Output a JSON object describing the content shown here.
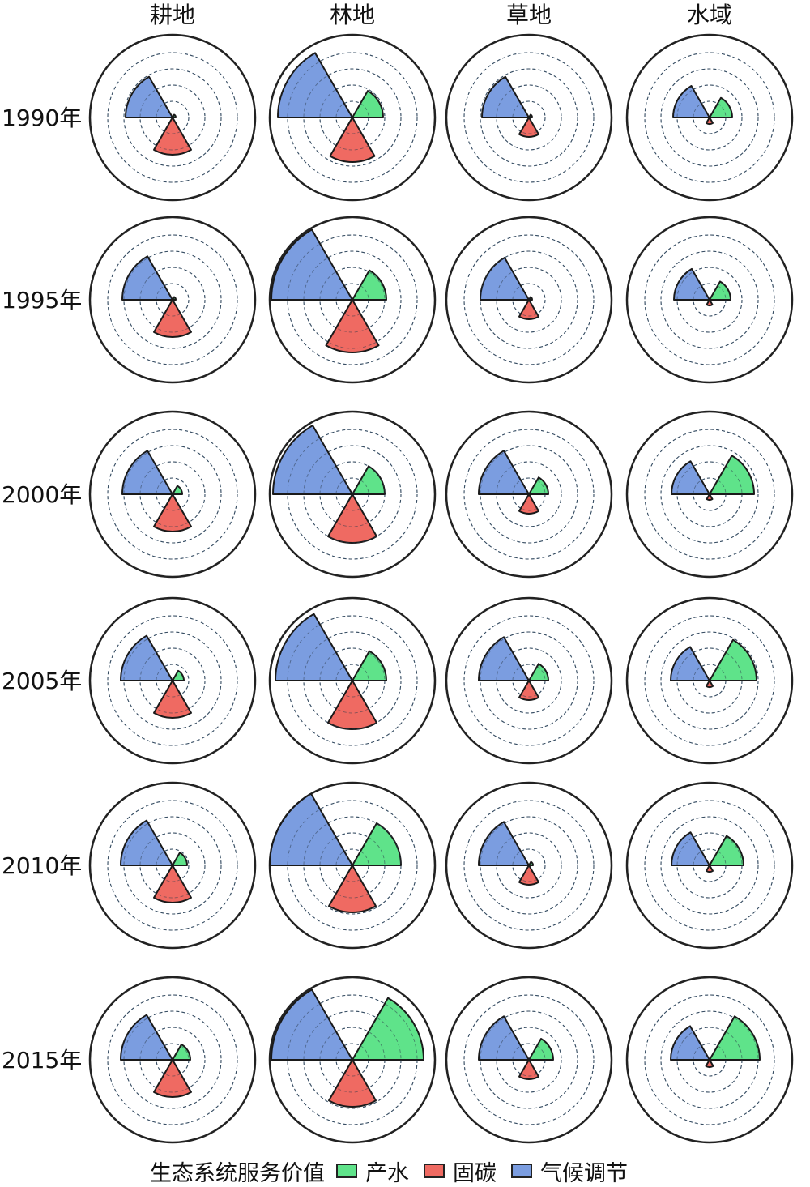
{
  "chart_data": {
    "type": "polar-area",
    "columns": [
      "耕地",
      "林地",
      "草地",
      "水域"
    ],
    "rows": [
      "1990年",
      "1995年",
      "2000年",
      "2005年",
      "2010年",
      "2015年"
    ],
    "legend": {
      "title": "生态系统服务价值",
      "items": [
        {
          "name": "产水",
          "color": "#5fe38a"
        },
        {
          "name": "固碳",
          "color": "#ef6a62"
        },
        {
          "name": "气候调节",
          "color": "#7b9de0"
        }
      ]
    },
    "series": [
      {
        "name": "气候调节",
        "color": "#7b9de0",
        "values": [
          [
            0.58,
            0.92,
            0.58,
            0.45
          ],
          [
            0.62,
            1.0,
            0.6,
            0.44
          ],
          [
            0.62,
            0.98,
            0.62,
            0.47
          ],
          [
            0.64,
            0.95,
            0.62,
            0.48
          ],
          [
            0.64,
            1.02,
            0.62,
            0.47
          ],
          [
            0.64,
            1.0,
            0.62,
            0.48
          ]
        ]
      },
      {
        "name": "产水",
        "color": "#5fe38a",
        "values": [
          [
            0.04,
            0.38,
            0.04,
            0.28
          ],
          [
            0.04,
            0.42,
            0.04,
            0.26
          ],
          [
            0.12,
            0.4,
            0.24,
            0.55
          ],
          [
            0.14,
            0.42,
            0.24,
            0.58
          ],
          [
            0.18,
            0.6,
            0.05,
            0.42
          ],
          [
            0.22,
            0.88,
            0.3,
            0.62
          ]
        ]
      },
      {
        "name": "固碳",
        "color": "#ef6a62",
        "values": [
          [
            0.46,
            0.55,
            0.24,
            0.08
          ],
          [
            0.46,
            0.65,
            0.24,
            0.07
          ],
          [
            0.46,
            0.6,
            0.24,
            0.07
          ],
          [
            0.46,
            0.6,
            0.24,
            0.08
          ],
          [
            0.46,
            0.58,
            0.24,
            0.08
          ],
          [
            0.46,
            0.58,
            0.24,
            0.09
          ]
        ]
      }
    ],
    "max_radius": 1,
    "rings": [
      0.2,
      0.4,
      0.6,
      0.8
    ],
    "grid": true
  }
}
